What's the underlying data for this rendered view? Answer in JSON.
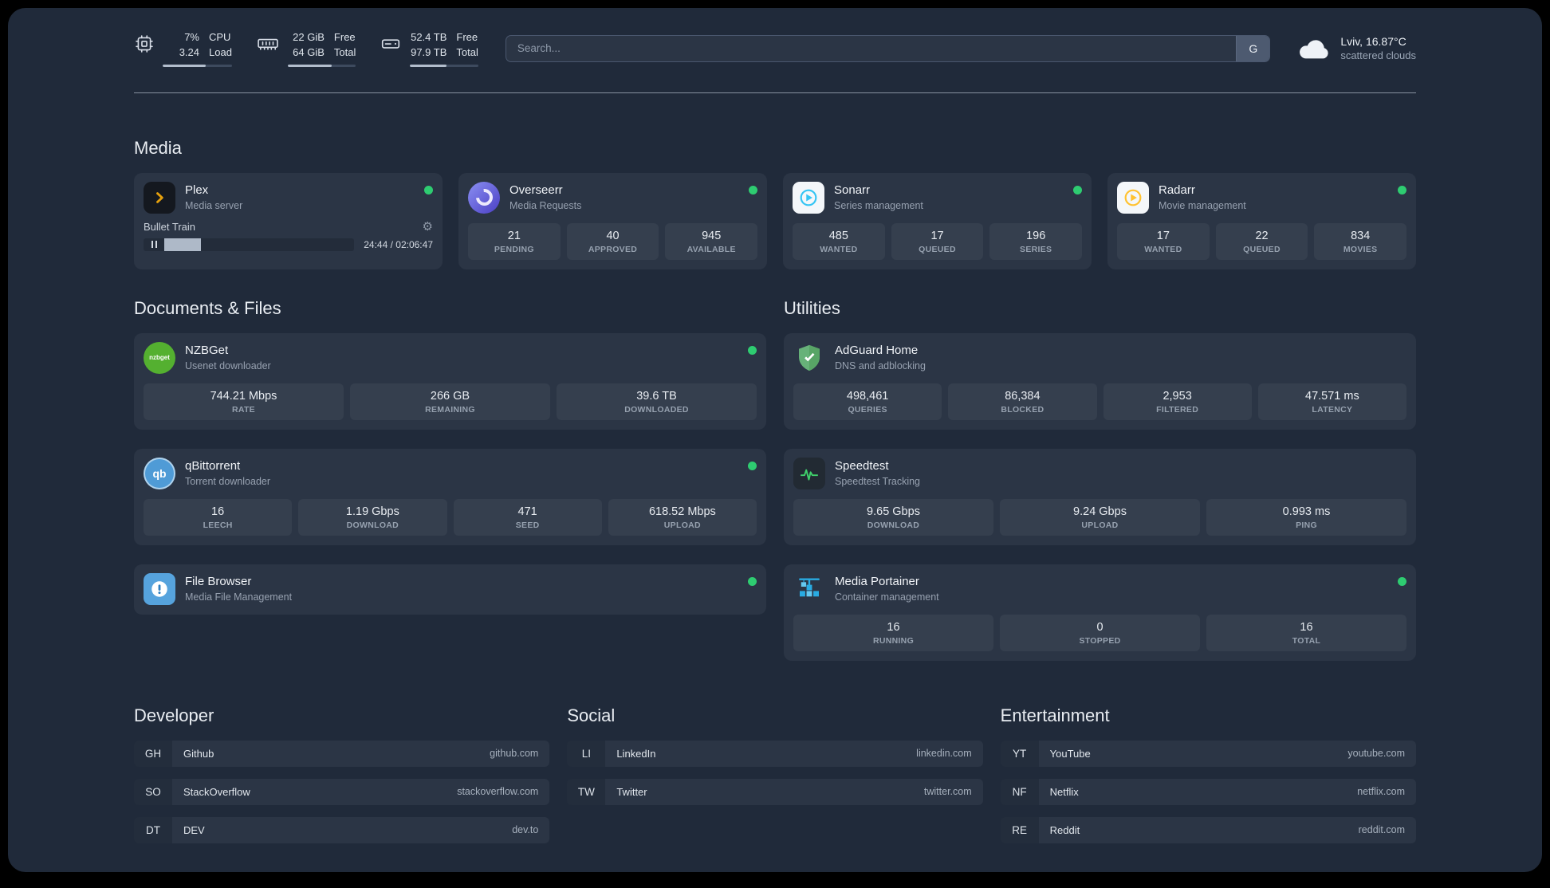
{
  "colors": {
    "status_online": "#2ecc71",
    "plex_gold": "#e5a00d",
    "overseerr_purple": "#4b3fc4",
    "sonarr_blue": "#35c5f4",
    "radarr_gold": "#ffc230",
    "nzbget_green": "#54b030",
    "qbittorrent_blue": "#4f9bd6",
    "filebrowser_blue": "#56a3dd",
    "adguard_green": "#67b279",
    "speedtest_green": "#3fd06b",
    "portainer_blue": "#29abe2"
  },
  "topbar": {
    "cpu": {
      "value_top": "7%",
      "value_bottom": "3.24",
      "label_top": "CPU",
      "label_bottom": "Load",
      "bar_pct": 62
    },
    "memory": {
      "value_top": "22 GiB",
      "value_bottom": "64 GiB",
      "label_top": "Free",
      "label_bottom": "Total",
      "bar_pct": 65
    },
    "disk": {
      "value_top": "52.4 TB",
      "value_bottom": "97.9 TB",
      "label_top": "Free",
      "label_bottom": "Total",
      "bar_pct": 53
    },
    "search": {
      "placeholder": "Search...",
      "provider_label": "G"
    },
    "weather": {
      "location": "Lviv, 16.87°C",
      "condition": "scattered clouds"
    }
  },
  "media": {
    "title": "Media",
    "plex": {
      "name": "Plex",
      "desc": "Media server",
      "now_playing": "Bullet Train",
      "time": "24:44 / 02:06:47",
      "progress_pct": 19.5,
      "gear_icon": "⚙"
    },
    "overseerr": {
      "name": "Overseerr",
      "desc": "Media Requests",
      "stats": [
        {
          "value": "21",
          "label": "PENDING"
        },
        {
          "value": "40",
          "label": "APPROVED"
        },
        {
          "value": "945",
          "label": "AVAILABLE"
        }
      ]
    },
    "sonarr": {
      "name": "Sonarr",
      "desc": "Series management",
      "stats": [
        {
          "value": "485",
          "label": "WANTED"
        },
        {
          "value": "17",
          "label": "QUEUED"
        },
        {
          "value": "196",
          "label": "SERIES"
        }
      ]
    },
    "radarr": {
      "name": "Radarr",
      "desc": "Movie management",
      "stats": [
        {
          "value": "17",
          "label": "WANTED"
        },
        {
          "value": "22",
          "label": "QUEUED"
        },
        {
          "value": "834",
          "label": "MOVIES"
        }
      ]
    }
  },
  "documents": {
    "title": "Documents & Files",
    "nzbget": {
      "name": "NZBGet",
      "desc": "Usenet downloader",
      "icon_text": "nzbget",
      "stats": [
        {
          "value": "744.21 Mbps",
          "label": "RATE"
        },
        {
          "value": "266 GB",
          "label": "REMAINING"
        },
        {
          "value": "39.6 TB",
          "label": "DOWNLOADED"
        }
      ]
    },
    "qbittorrent": {
      "name": "qBittorrent",
      "desc": "Torrent downloader",
      "icon_text": "qb",
      "stats": [
        {
          "value": "16",
          "label": "LEECH"
        },
        {
          "value": "1.19 Gbps",
          "label": "DOWNLOAD"
        },
        {
          "value": "471",
          "label": "SEED"
        },
        {
          "value": "618.52 Mbps",
          "label": "UPLOAD"
        }
      ]
    },
    "filebrowser": {
      "name": "File Browser",
      "desc": "Media File Management"
    }
  },
  "utilities": {
    "title": "Utilities",
    "adguard": {
      "name": "AdGuard Home",
      "desc": "DNS and adblocking",
      "stats": [
        {
          "value": "498,461",
          "label": "QUERIES"
        },
        {
          "value": "86,384",
          "label": "BLOCKED"
        },
        {
          "value": "2,953",
          "label": "FILTERED"
        },
        {
          "value": "47.571 ms",
          "label": "LATENCY"
        }
      ]
    },
    "speedtest": {
      "name": "Speedtest",
      "desc": "Speedtest Tracking",
      "stats": [
        {
          "value": "9.65 Gbps",
          "label": "DOWNLOAD"
        },
        {
          "value": "9.24 Gbps",
          "label": "UPLOAD"
        },
        {
          "value": "0.993 ms",
          "label": "PING"
        }
      ]
    },
    "portainer": {
      "name": "Media Portainer",
      "desc": "Container management",
      "stats": [
        {
          "value": "16",
          "label": "RUNNING"
        },
        {
          "value": "0",
          "label": "STOPPED"
        },
        {
          "value": "16",
          "label": "TOTAL"
        }
      ]
    }
  },
  "bookmarks": {
    "developer": {
      "title": "Developer",
      "items": [
        {
          "abbr": "GH",
          "name": "Github",
          "url": "github.com"
        },
        {
          "abbr": "SO",
          "name": "StackOverflow",
          "url": "stackoverflow.com"
        },
        {
          "abbr": "DT",
          "name": "DEV",
          "url": "dev.to"
        }
      ]
    },
    "social": {
      "title": "Social",
      "items": [
        {
          "abbr": "LI",
          "name": "LinkedIn",
          "url": "linkedin.com"
        },
        {
          "abbr": "TW",
          "name": "Twitter",
          "url": "twitter.com"
        }
      ]
    },
    "entertainment": {
      "title": "Entertainment",
      "items": [
        {
          "abbr": "YT",
          "name": "YouTube",
          "url": "youtube.com"
        },
        {
          "abbr": "NF",
          "name": "Netflix",
          "url": "netflix.com"
        },
        {
          "abbr": "RE",
          "name": "Reddit",
          "url": "reddit.com"
        }
      ]
    }
  }
}
